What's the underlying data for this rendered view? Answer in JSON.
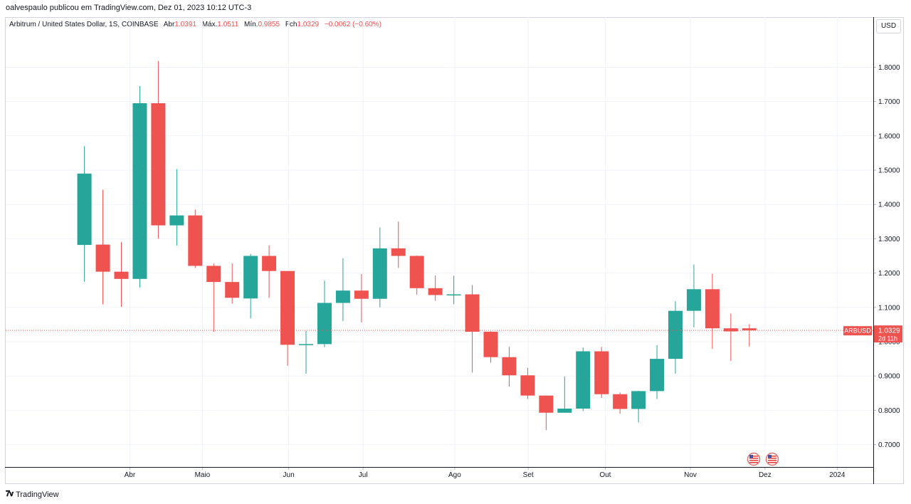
{
  "header": {
    "publisher_line": "oalvespaulo publicou em TradingView.com, Dez 01, 2023 10:12 UTC-3"
  },
  "symbol": {
    "name": "Arbitrum / United States Dollar, 1S, COINBASE",
    "open_label": "Abr",
    "open_value": "1.0391",
    "high_label": "Máx.",
    "high_value": "1.0511",
    "low_label": "Mín.",
    "low_value": "0.9855",
    "close_label": "Fch",
    "close_value": "1.0329",
    "change": "−0.0062 (−0.60%)"
  },
  "currency_button": "USD",
  "price_tag": {
    "ticker": "ARBUSD",
    "price": "1.0329",
    "countdown": "2d 11h",
    "color": "#ef5350"
  },
  "footer": {
    "logo_text": "TradingView"
  },
  "colors": {
    "up": "#26a69a",
    "down": "#ef5350",
    "grid": "#f0f3fa",
    "axis": "#b2b5be"
  },
  "chart_data": {
    "type": "candlestick",
    "pair": "ARBUSD",
    "interval": "1S",
    "exchange": "COINBASE",
    "y_axis": {
      "ticks": [
        "0.7000",
        "0.8000",
        "0.9000",
        "1.0000",
        "1.1000",
        "1.2000",
        "1.3000",
        "1.4000",
        "1.5000",
        "1.6000",
        "1.7000",
        "1.8000"
      ],
      "range": [
        0.63,
        1.9
      ]
    },
    "x_axis": {
      "labels": [
        {
          "label": "Abr",
          "idx": 2.46
        },
        {
          "label": "Maio",
          "idx": 6.39
        },
        {
          "label": "Jun",
          "idx": 11.06
        },
        {
          "label": "Jul",
          "idx": 15.09
        },
        {
          "label": "Ago",
          "idx": 20.05
        },
        {
          "label": "Set",
          "idx": 24.03
        },
        {
          "label": "Out",
          "idx": 28.2
        },
        {
          "label": "Nov",
          "idx": 32.81
        },
        {
          "label": "Dez",
          "idx": 36.85
        },
        {
          "label": "2024",
          "idx": 40.76
        }
      ]
    },
    "candles": [
      {
        "o": 1.282,
        "h": 1.57,
        "l": 1.175,
        "c": 1.49
      },
      {
        "o": 1.283,
        "h": 1.443,
        "l": 1.109,
        "c": 1.204
      },
      {
        "o": 1.204,
        "h": 1.29,
        "l": 1.102,
        "c": 1.183
      },
      {
        "o": 1.183,
        "h": 1.745,
        "l": 1.158,
        "c": 1.695
      },
      {
        "o": 1.695,
        "h": 1.818,
        "l": 1.3,
        "c": 1.339
      },
      {
        "o": 1.339,
        "h": 1.503,
        "l": 1.28,
        "c": 1.368
      },
      {
        "o": 1.368,
        "h": 1.385,
        "l": 1.215,
        "c": 1.221
      },
      {
        "o": 1.221,
        "h": 1.228,
        "l": 1.029,
        "c": 1.174
      },
      {
        "o": 1.174,
        "h": 1.228,
        "l": 1.111,
        "c": 1.128
      },
      {
        "o": 1.126,
        "h": 1.256,
        "l": 1.068,
        "c": 1.25
      },
      {
        "o": 1.25,
        "h": 1.281,
        "l": 1.128,
        "c": 1.206
      },
      {
        "o": 1.206,
        "h": 1.206,
        "l": 0.93,
        "c": 0.991
      },
      {
        "o": 0.991,
        "h": 1.032,
        "l": 0.907,
        "c": 0.993
      },
      {
        "o": 0.993,
        "h": 1.178,
        "l": 0.984,
        "c": 1.113
      },
      {
        "o": 1.113,
        "h": 1.243,
        "l": 1.06,
        "c": 1.149
      },
      {
        "o": 1.149,
        "h": 1.197,
        "l": 1.056,
        "c": 1.125
      },
      {
        "o": 1.125,
        "h": 1.333,
        "l": 1.1,
        "c": 1.272
      },
      {
        "o": 1.272,
        "h": 1.35,
        "l": 1.215,
        "c": 1.25
      },
      {
        "o": 1.25,
        "h": 1.251,
        "l": 1.137,
        "c": 1.156
      },
      {
        "o": 1.156,
        "h": 1.193,
        "l": 1.119,
        "c": 1.136
      },
      {
        "o": 1.136,
        "h": 1.192,
        "l": 1.109,
        "c": 1.138
      },
      {
        "o": 1.138,
        "h": 1.165,
        "l": 0.91,
        "c": 1.029
      },
      {
        "o": 1.029,
        "h": 1.03,
        "l": 0.939,
        "c": 0.955
      },
      {
        "o": 0.955,
        "h": 0.985,
        "l": 0.869,
        "c": 0.902
      },
      {
        "o": 0.902,
        "h": 0.924,
        "l": 0.833,
        "c": 0.843
      },
      {
        "o": 0.843,
        "h": 0.843,
        "l": 0.742,
        "c": 0.793
      },
      {
        "o": 0.793,
        "h": 0.899,
        "l": 0.793,
        "c": 0.805
      },
      {
        "o": 0.805,
        "h": 0.983,
        "l": 0.798,
        "c": 0.972
      },
      {
        "o": 0.972,
        "h": 0.985,
        "l": 0.836,
        "c": 0.847
      },
      {
        "o": 0.847,
        "h": 0.852,
        "l": 0.79,
        "c": 0.804
      },
      {
        "o": 0.804,
        "h": 0.857,
        "l": 0.765,
        "c": 0.856
      },
      {
        "o": 0.856,
        "h": 0.99,
        "l": 0.833,
        "c": 0.95
      },
      {
        "o": 0.95,
        "h": 1.118,
        "l": 0.907,
        "c": 1.09
      },
      {
        "o": 1.09,
        "h": 1.225,
        "l": 1.042,
        "c": 1.153
      },
      {
        "o": 1.153,
        "h": 1.198,
        "l": 0.979,
        "c": 1.039
      },
      {
        "o": 1.039,
        "h": 1.082,
        "l": 0.944,
        "c": 1.03
      },
      {
        "o": 1.039,
        "h": 1.051,
        "l": 0.986,
        "c": 1.033
      }
    ],
    "last_price": 1.0329
  }
}
